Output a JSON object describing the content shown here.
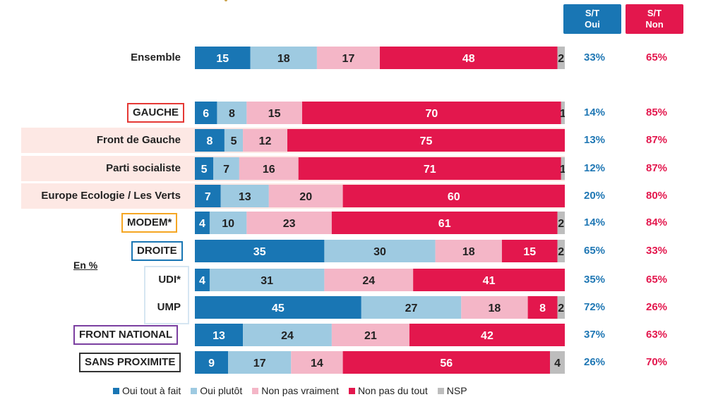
{
  "header": {
    "oui": [
      "S/T",
      "Oui"
    ],
    "non": [
      "S/T",
      "Non"
    ]
  },
  "colors": {
    "oui_tout": "#1976b4",
    "oui_plutot": "#9ecae1",
    "non_vraiment": "#f4b6c7",
    "non_tout": "#e3174d",
    "nsp": "#bdbdbd",
    "band": "#fde8e4",
    "oui_text": "#1f77b4",
    "non_text": "#e3174d"
  },
  "unit_label": "En %",
  "chart_data": {
    "type": "bar",
    "orientation": "horizontal",
    "stacked": true,
    "categories": [
      "Ensemble",
      "GAUCHE",
      "Front de Gauche",
      "Parti socialiste",
      "Europe Ecologie / Les Verts",
      "MODEM*",
      "DROITE",
      "UDI*",
      "UMP",
      "FRONT NATIONAL",
      "SANS PROXIMITE"
    ],
    "series": [
      {
        "name": "Oui tout à fait",
        "values": [
          15,
          6,
          8,
          5,
          7,
          4,
          35,
          4,
          45,
          13,
          9
        ]
      },
      {
        "name": "Oui plutôt",
        "values": [
          18,
          8,
          5,
          7,
          13,
          10,
          30,
          31,
          27,
          24,
          17
        ]
      },
      {
        "name": "Non pas vraiment",
        "values": [
          17,
          15,
          12,
          16,
          20,
          23,
          18,
          24,
          18,
          21,
          14
        ]
      },
      {
        "name": "Non pas du tout",
        "values": [
          48,
          70,
          75,
          71,
          60,
          61,
          15,
          41,
          8,
          42,
          56
        ]
      },
      {
        "name": "NSP",
        "values": [
          2,
          1,
          0,
          1,
          0,
          2,
          2,
          0,
          2,
          0,
          4
        ]
      }
    ],
    "st_oui": [
      "33%",
      "14%",
      "13%",
      "12%",
      "20%",
      "14%",
      "65%",
      "35%",
      "72%",
      "37%",
      "26%"
    ],
    "st_non": [
      "65%",
      "85%",
      "87%",
      "87%",
      "80%",
      "84%",
      "33%",
      "65%",
      "26%",
      "63%",
      "70%"
    ],
    "xlim": [
      0,
      100
    ]
  }
}
